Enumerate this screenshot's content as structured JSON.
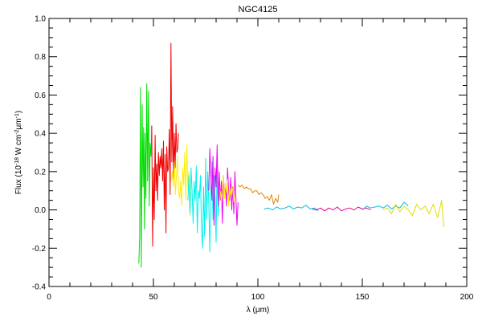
{
  "chart_data": {
    "type": "line",
    "title": "NGC4125",
    "xlabel": "λ (μm)",
    "ylabel_prefix": "Flux (10",
    "ylabel_exp1": "-18",
    "ylabel_mid": " W cm",
    "ylabel_exp2": "-2",
    "ylabel_mid2": "μm",
    "ylabel_exp3": "-1",
    "ylabel_suffix": ")",
    "xlim": [
      0,
      200
    ],
    "ylim": [
      -0.4,
      1.0
    ],
    "x_ticks": [
      0,
      50,
      100,
      150,
      200
    ],
    "x_tick_labels": [
      "0",
      "50",
      "100",
      "150",
      "200"
    ],
    "y_ticks": [
      -0.4,
      -0.2,
      0.0,
      0.2,
      0.4,
      0.6,
      0.8,
      1.0
    ],
    "y_tick_labels": [
      "-0.4",
      "-0.2",
      "0.0",
      "0.2",
      "0.4",
      "0.6",
      "0.8",
      "1.0"
    ],
    "grid": false,
    "series": [
      {
        "color": "#00dd00",
        "x": [
          43.0,
          43.4,
          43.8,
          44.2,
          44.6,
          45.0,
          45.3,
          45.7,
          46.0,
          46.4,
          46.8,
          47.2,
          47.6,
          48.0,
          48.4,
          48.8,
          49.2
        ],
        "y": [
          -0.28,
          -0.15,
          0.64,
          -0.3,
          0.55,
          0.12,
          0.43,
          -0.1,
          0.4,
          0.06,
          0.66,
          0.15,
          0.62,
          0.02,
          0.35,
          0.28,
          0.44
        ]
      },
      {
        "color": "#ee0000",
        "x": [
          49.2,
          49.6,
          50.0,
          50.4,
          50.8,
          51.2,
          51.6,
          52.0,
          52.4,
          52.8,
          53.2,
          53.6,
          54.0,
          54.4,
          54.8,
          55.2,
          55.6,
          56.0,
          56.4,
          56.8,
          57.2,
          57.6,
          58.0,
          58.4,
          58.8,
          59.2,
          59.6,
          60.0,
          60.4,
          60.8,
          61.2,
          61.6,
          62.0
        ],
        "y": [
          0.44,
          -0.19,
          0.22,
          -0.05,
          0.39,
          0.1,
          0.24,
          0.05,
          0.3,
          0.18,
          0.28,
          0.22,
          0.32,
          0.15,
          0.36,
          0.0,
          0.29,
          -0.12,
          0.33,
          0.2,
          0.22,
          0.42,
          0.08,
          0.87,
          0.25,
          0.54,
          0.15,
          0.4,
          0.22,
          0.45,
          0.3,
          0.32,
          0.4
        ]
      },
      {
        "color": "#ffee00",
        "x": [
          58.5,
          59.0,
          59.5,
          60.0,
          60.5,
          61.0,
          61.5,
          62.0,
          62.5,
          63.0,
          63.5,
          64.0,
          64.5,
          65.0,
          65.5,
          66.0,
          66.5,
          67.0,
          67.5,
          68.0
        ],
        "y": [
          0.15,
          0.2,
          0.12,
          0.25,
          0.08,
          0.18,
          0.28,
          0.1,
          0.06,
          0.15,
          0.02,
          0.22,
          0.13,
          0.3,
          0.05,
          0.34,
          0.12,
          0.2,
          -0.03,
          0.15
        ]
      },
      {
        "color": "#00f0f0",
        "x": [
          66.5,
          67.0,
          67.5,
          68.0,
          68.5,
          69.0,
          69.5,
          70.0,
          70.5,
          71.0,
          71.5,
          72.0,
          72.5,
          73.0,
          73.5,
          74.0,
          74.5,
          75.0,
          75.5,
          76.0,
          76.5,
          77.0,
          77.5,
          78.0,
          78.5,
          79.0,
          79.5,
          80.0,
          80.5,
          81.0,
          81.5
        ],
        "y": [
          0.05,
          0.18,
          -0.02,
          0.22,
          0.1,
          -0.07,
          0.15,
          0.05,
          0.23,
          -0.12,
          0.1,
          0.06,
          0.18,
          -0.1,
          -0.2,
          0.12,
          -0.14,
          0.27,
          -0.05,
          0.2,
          0.03,
          -0.22,
          0.12,
          0.25,
          -0.05,
          0.18,
          0.06,
          -0.17,
          0.28,
          -0.03,
          0.1
        ]
      },
      {
        "color": "#ee00ee",
        "x": [
          76.5,
          77.0,
          77.5,
          78.0,
          78.5,
          79.0,
          79.5,
          80.0,
          80.5,
          81.0,
          81.5,
          82.0,
          82.5,
          83.0,
          83.5,
          84.0,
          84.5,
          85.0,
          85.5,
          86.0,
          86.5,
          87.0,
          87.5,
          88.0,
          88.5,
          89.0,
          89.5,
          90.0,
          90.5
        ],
        "y": [
          0.1,
          0.32,
          0.18,
          0.05,
          0.28,
          -0.08,
          0.22,
          0.12,
          0.34,
          0.02,
          0.2,
          0.05,
          0.15,
          -0.07,
          0.18,
          0.08,
          0.12,
          0.02,
          0.22,
          0.1,
          0.05,
          0.17,
          0.0,
          0.12,
          -0.02,
          0.2,
          0.06,
          -0.08,
          0.04
        ]
      },
      {
        "color": "#ffee00",
        "x": [
          82.0,
          82.5,
          83.0,
          83.5,
          84.0,
          84.5,
          85.0,
          85.5,
          86.0,
          86.5,
          87.0,
          87.5,
          88.0,
          88.5,
          89.0
        ],
        "y": [
          0.1,
          0.04,
          0.12,
          0.18,
          0.06,
          0.14,
          0.09,
          0.16,
          0.02,
          0.11,
          0.07,
          0.13,
          0.1,
          0.04,
          0.09
        ]
      },
      {
        "color": "#dd8800",
        "x": [
          90.5,
          91.5,
          92.5,
          93.5,
          94.5,
          95.5,
          96.5,
          97.5,
          98.5,
          99.5,
          100.5,
          101.5,
          102.5,
          103.5,
          104.5,
          105.5,
          106.5,
          107.5,
          108.5,
          109.5,
          110.0
        ],
        "y": [
          0.13,
          0.12,
          0.13,
          0.11,
          0.12,
          0.11,
          0.11,
          0.09,
          0.1,
          0.1,
          0.08,
          0.09,
          0.08,
          0.06,
          0.07,
          0.05,
          0.08,
          0.03,
          0.06,
          0.04,
          0.08
        ]
      },
      {
        "color": "#00bbdd",
        "x": [
          103.0,
          105.0,
          107.0,
          109.0,
          111.0,
          113.0,
          115.0,
          117.0,
          119.0,
          121.0,
          123.0,
          125.0,
          127.0,
          129.0
        ],
        "y": [
          0.005,
          0.01,
          0.0,
          0.015,
          0.005,
          0.01,
          0.02,
          0.005,
          0.015,
          0.01,
          0.025,
          0.005,
          0.01,
          -0.005
        ]
      },
      {
        "color": "#ee0088",
        "x": [
          126.0,
          128.0,
          130.0,
          132.0,
          134.0,
          136.0,
          138.0,
          140.0,
          142.0,
          144.0,
          146.0,
          148.0,
          150.0,
          152.0,
          154.0
        ],
        "y": [
          0.005,
          0.0,
          0.01,
          -0.005,
          0.01,
          0.0,
          0.015,
          -0.005,
          0.005,
          0.01,
          0.0,
          0.015,
          0.005,
          0.01,
          0.0
        ]
      },
      {
        "color": "#00bbdd",
        "x": [
          150.0,
          152.0,
          154.0,
          156.0,
          158.0,
          160.0,
          162.0,
          164.0,
          166.0,
          168.0,
          170.0,
          172.0
        ],
        "y": [
          0.0,
          0.02,
          0.01,
          0.015,
          0.02,
          0.01,
          0.025,
          0.005,
          0.02,
          0.01,
          0.04,
          0.02
        ]
      },
      {
        "color": "#dddd00",
        "x": [
          160.0,
          162.0,
          164.0,
          166.0,
          168.0,
          170.0,
          172.0,
          174.0,
          176.0,
          178.0,
          180.0,
          182.0,
          184.0,
          186.0,
          188.0,
          189.0
        ],
        "y": [
          0.0,
          0.01,
          -0.02,
          0.03,
          -0.01,
          0.02,
          0.0,
          -0.03,
          0.03,
          0.0,
          0.02,
          -0.02,
          0.03,
          -0.04,
          0.05,
          -0.09
        ]
      }
    ]
  }
}
